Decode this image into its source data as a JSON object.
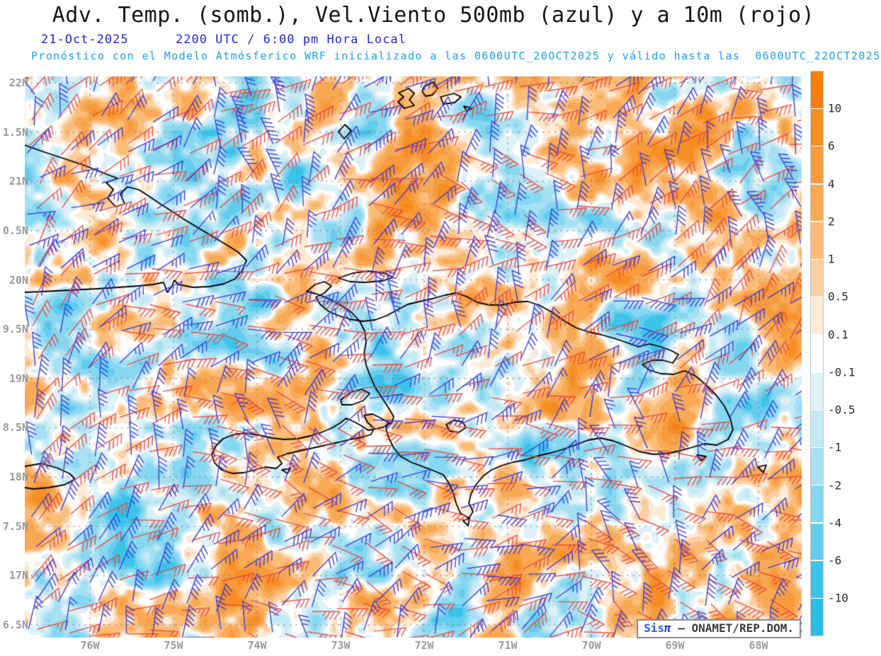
{
  "header": {
    "title": "Adv. Temp. (somb.), Vel.Viento 500mb (azul) y a 10m (rojo)",
    "date": "21-Oct-2025",
    "time": "2200 UTC / 6:00 pm Hora Local",
    "forecast_note": "Pronóstico con el Modelo Atmósferico WRF inicializado a las 0600UTC_20OCT2025 y válido hasta las  0600UTC_22OCT2025"
  },
  "map": {
    "lat_labels": [
      "22N",
      "1.5N",
      "21N",
      "0.5N",
      "20N",
      "9.5N",
      "19N",
      "8.5N",
      "18N",
      "7.5N",
      "17N",
      "6.5N"
    ],
    "lon_labels": [
      "76W",
      "75W",
      "74W",
      "73W",
      "72W",
      "71W",
      "70W",
      "69W",
      "68W"
    ],
    "watermark": {
      "brand": "Sis",
      "symbol": "π",
      "org": " – ONAMET/REP.DOM."
    }
  },
  "colorbar": {
    "tick_labels": [
      "10",
      "6",
      "4",
      "2",
      "1",
      "0.5",
      "0.1",
      "-0.1",
      "-0.5",
      "-1",
      "-2",
      "-4",
      "-6",
      "-10"
    ],
    "segment_colors_top_to_bottom": [
      "#F57F0D",
      "#F78E22",
      "#F89B3D",
      "#F9A953",
      "#FBBC77",
      "#FBCFA1",
      "#FDEBD7",
      "#FFFFFF",
      "#DCF1F8",
      "#C3E9F5",
      "#A5E0F3",
      "#86D7F0",
      "#62CDEE",
      "#3CC3E9",
      "#29BFE7"
    ]
  },
  "colors": {
    "barb_500mb_blue": "#3B3BD8",
    "barb_10m_red": "#E8463E",
    "coastline": "#000000",
    "date_blue": "#2626DE",
    "note_blue": "#1C9FEE",
    "axis_gray": "#9B9B9B"
  }
}
